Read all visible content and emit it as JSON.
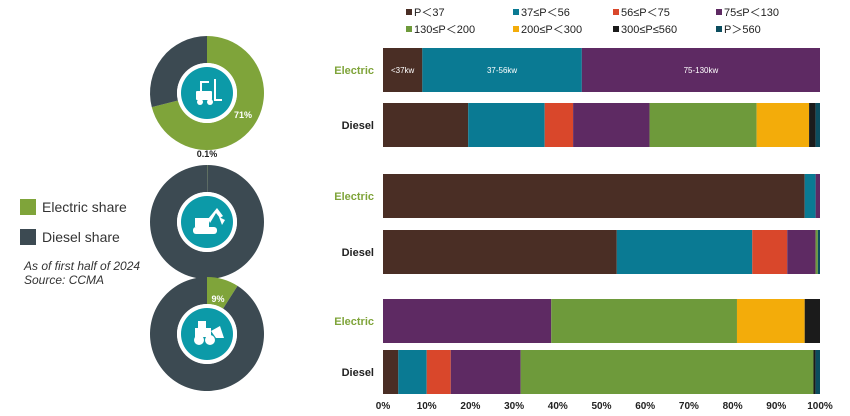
{
  "side_legend": {
    "items": [
      {
        "label": "Electric share",
        "color": "#7fa43a"
      },
      {
        "label": "Diesel share",
        "color": "#3c4a52"
      }
    ],
    "note_line1": "As of first half of 2024",
    "note_line2": "Source: CCMA"
  },
  "chart_data": [
    {
      "type": "pie",
      "variant": "donut",
      "icon": "forklift-icon",
      "series": [
        {
          "name": "Electric share",
          "value": 71,
          "label": "71%",
          "color": "#7fa43a"
        },
        {
          "name": "Diesel share",
          "value": 29,
          "label": "",
          "color": "#3c4a52"
        }
      ]
    },
    {
      "type": "pie",
      "variant": "donut",
      "icon": "excavator-icon",
      "series": [
        {
          "name": "Electric share",
          "value": 0.1,
          "label": "0.1%",
          "color": "#7fa43a"
        },
        {
          "name": "Diesel share",
          "value": 99.9,
          "label": "",
          "color": "#3c4a52"
        }
      ]
    },
    {
      "type": "pie",
      "variant": "donut",
      "icon": "wheel-loader-icon",
      "series": [
        {
          "name": "Electric share",
          "value": 9,
          "label": "9%",
          "color": "#7fa43a"
        },
        {
          "name": "Diesel share",
          "value": 91,
          "label": "",
          "color": "#3c4a52"
        }
      ]
    },
    {
      "type": "bar",
      "orientation": "horizontal",
      "stacked": "percent",
      "xlim": [
        0,
        100
      ],
      "xticks": [
        "0%",
        "10%",
        "20%",
        "30%",
        "40%",
        "50%",
        "60%",
        "70%",
        "80%",
        "90%",
        "100%"
      ],
      "grid": false,
      "legend_position": "top",
      "legend": [
        {
          "name": "P＜37",
          "color": "#4a2e25"
        },
        {
          "name": "37≤P＜56",
          "color": "#0a7a93"
        },
        {
          "name": "56≤P＜75",
          "color": "#d9472b"
        },
        {
          "name": "75≤P＜130",
          "color": "#5e2a63"
        },
        {
          "name": "130≤P＜200",
          "color": "#6e9a3b"
        },
        {
          "name": "200≤P＜300",
          "color": "#f3ac0a"
        },
        {
          "name": "300≤P≤560",
          "color": "#1b1b1b"
        },
        {
          "name": "P＞560",
          "color": "#0c4d5e"
        }
      ],
      "categories": [
        {
          "label": "Electric",
          "group": "forklift",
          "values": [
            9,
            36.5,
            0,
            54.5,
            0,
            0,
            0,
            0
          ],
          "segment_labels": [
            "<37kw",
            "37-56kw",
            "",
            "75-130kw",
            "",
            "",
            "",
            ""
          ]
        },
        {
          "label": "Diesel",
          "group": "forklift",
          "values": [
            19.5,
            17.5,
            6.5,
            17.5,
            24.5,
            12,
            1.5,
            1
          ],
          "segment_labels": [
            "",
            "",
            "",
            "",
            "",
            "",
            "",
            ""
          ]
        },
        {
          "label": "Electric",
          "group": "excavator",
          "values": [
            96.5,
            2.5,
            0,
            1,
            0,
            0,
            0,
            0
          ],
          "segment_labels": [
            "",
            "",
            "",
            "",
            "",
            "",
            "",
            ""
          ]
        },
        {
          "label": "Diesel",
          "group": "excavator",
          "values": [
            53.5,
            31,
            8,
            6.5,
            0.5,
            0,
            0,
            0.5
          ],
          "segment_labels": [
            "",
            "",
            "",
            "",
            "",
            "",
            "",
            ""
          ]
        },
        {
          "label": "Electric",
          "group": "wheel-loader",
          "values": [
            0,
            0,
            0,
            38.5,
            42.5,
            15.5,
            3.5,
            0
          ],
          "segment_labels": [
            "",
            "",
            "",
            "",
            "",
            "",
            "",
            ""
          ]
        },
        {
          "label": "Diesel",
          "group": "wheel-loader",
          "values": [
            3.5,
            6.5,
            5.5,
            16,
            67,
            0,
            0.5,
            1
          ],
          "segment_labels": [
            "",
            "",
            "",
            "",
            "",
            "",
            "",
            ""
          ]
        }
      ],
      "electric_label_color": "#7fa43a",
      "diesel_label_color": "#222222"
    }
  ]
}
